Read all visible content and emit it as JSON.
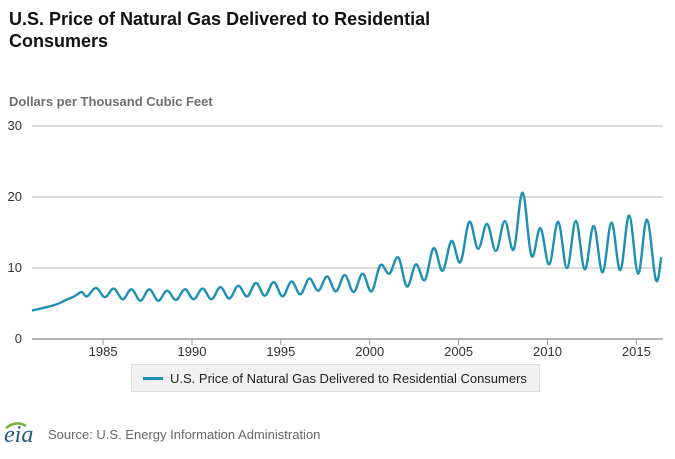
{
  "title": "U.S. Price of Natural Gas Delivered to Residential Consumers",
  "source": "Source: U.S. Energy Information Administration",
  "logo": {
    "text": "eia",
    "icon": "eia-logo-icon"
  },
  "colors": {
    "series": "#1e90b2",
    "grid": "#cfcfcf",
    "axis_label": "#6e6e6e"
  },
  "chart_data": {
    "type": "line",
    "title": "U.S. Price of Natural Gas Delivered to Residential Consumers",
    "ylabel": "Dollars per Thousand Cubic Feet",
    "xlabel": "",
    "ylim": [
      0,
      30
    ],
    "yticks": [
      "0",
      "10",
      "20",
      "30"
    ],
    "xlim": [
      1981,
      2016.5
    ],
    "xticks": [
      "1985",
      "1990",
      "1995",
      "2000",
      "2005",
      "2010",
      "2015"
    ],
    "grid": true,
    "legend_position": "bottom",
    "series": [
      {
        "name": "U.S. Price of Natural Gas Delivered to Residential Consumers",
        "x": [
          1981.0,
          1981.5,
          1982.0,
          1982.5,
          1983.0,
          1983.3,
          1983.5,
          1983.8,
          1984.1,
          1984.6,
          1985.1,
          1985.6,
          1986.1,
          1986.6,
          1987.1,
          1987.6,
          1988.1,
          1988.6,
          1989.1,
          1989.6,
          1990.1,
          1990.6,
          1991.1,
          1991.6,
          1992.1,
          1992.6,
          1993.1,
          1993.6,
          1994.1,
          1994.6,
          1995.1,
          1995.6,
          1996.1,
          1996.6,
          1997.1,
          1997.6,
          1998.1,
          1998.6,
          1999.1,
          1999.6,
          2000.1,
          2000.6,
          2001.1,
          2001.6,
          2002.1,
          2002.6,
          2003.1,
          2003.6,
          2004.1,
          2004.6,
          2005.1,
          2005.6,
          2006.1,
          2006.6,
          2007.1,
          2007.6,
          2008.1,
          2008.6,
          2009.1,
          2009.6,
          2010.1,
          2010.6,
          2011.1,
          2011.6,
          2012.1,
          2012.6,
          2013.1,
          2013.6,
          2014.1,
          2014.6,
          2015.1,
          2015.6,
          2016.1,
          2016.4
        ],
        "values": [
          4.0,
          4.3,
          4.6,
          5.0,
          5.6,
          5.9,
          6.2,
          6.6,
          6.0,
          7.2,
          5.9,
          7.1,
          5.6,
          7.0,
          5.4,
          7.0,
          5.4,
          6.8,
          5.5,
          7.0,
          5.6,
          7.1,
          5.6,
          7.3,
          5.7,
          7.5,
          6.0,
          7.9,
          6.1,
          8.0,
          6.0,
          8.1,
          6.3,
          8.5,
          6.8,
          8.8,
          6.7,
          9.0,
          6.6,
          9.2,
          6.7,
          10.4,
          9.2,
          11.5,
          7.4,
          10.5,
          8.3,
          12.8,
          9.6,
          13.8,
          10.8,
          16.5,
          12.7,
          16.2,
          12.4,
          16.6,
          12.6,
          20.6,
          11.7,
          15.6,
          10.5,
          16.5,
          10.0,
          16.6,
          9.8,
          15.9,
          9.4,
          16.4,
          9.7,
          17.4,
          9.2,
          16.8,
          8.3,
          11.5
        ]
      }
    ]
  }
}
